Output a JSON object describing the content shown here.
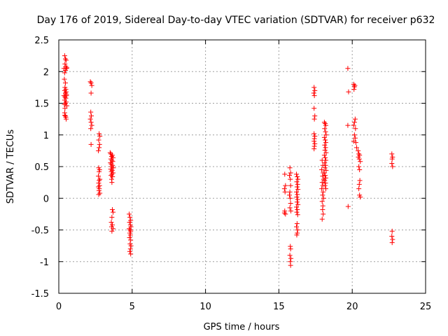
{
  "chart_data": {
    "type": "scatter",
    "title": "Day 176 of 2019, Sidereal Day-to-day VTEC variation (SDTVAR) for receiver p632",
    "xlabel": "GPS time / hours",
    "ylabel": "SDTVAR / TECUs",
    "xlim": [
      0,
      25
    ],
    "ylim": [
      -1.5,
      2.5
    ],
    "xticks": [
      0,
      5,
      10,
      15,
      20,
      25
    ],
    "xtick_labels": [
      "0",
      "5",
      "10",
      "15",
      "20",
      "25"
    ],
    "yticks": [
      -1.5,
      -1,
      -0.5,
      0,
      0.5,
      1,
      1.5,
      2,
      2.5
    ],
    "ytick_labels": [
      "-1.5",
      "-1",
      "-0.5",
      "0",
      "0.5",
      "1",
      "1.5",
      "2",
      "2.5"
    ],
    "grid": true,
    "marker": "plus",
    "color": "#ff0000",
    "series": [
      {
        "name": "SDTVAR",
        "points": [
          [
            0.4,
            2.25
          ],
          [
            0.45,
            2.2
          ],
          [
            0.5,
            2.18
          ],
          [
            0.42,
            2.12
          ],
          [
            0.48,
            2.08
          ],
          [
            0.35,
            2.05
          ],
          [
            0.52,
            2.05
          ],
          [
            0.45,
            2.02
          ],
          [
            0.4,
            1.98
          ],
          [
            0.55,
            2.06
          ],
          [
            0.38,
            1.88
          ],
          [
            0.45,
            1.82
          ],
          [
            0.42,
            1.75
          ],
          [
            0.48,
            1.72
          ],
          [
            0.4,
            1.7
          ],
          [
            0.5,
            1.68
          ],
          [
            0.45,
            1.66
          ],
          [
            0.52,
            1.64
          ],
          [
            0.35,
            1.62
          ],
          [
            0.42,
            1.6
          ],
          [
            0.48,
            1.58
          ],
          [
            0.4,
            1.55
          ],
          [
            0.5,
            1.52
          ],
          [
            0.45,
            1.5
          ],
          [
            0.38,
            1.48
          ],
          [
            0.55,
            1.46
          ],
          [
            0.42,
            1.42
          ],
          [
            0.4,
            1.35
          ],
          [
            0.45,
            1.3
          ],
          [
            0.48,
            1.28
          ],
          [
            0.5,
            1.25
          ],
          [
            0.4,
            1.31
          ],
          [
            0.52,
            1.62
          ],
          [
            2.15,
            1.84
          ],
          [
            2.2,
            1.82
          ],
          [
            2.25,
            1.78
          ],
          [
            2.2,
            1.66
          ],
          [
            2.18,
            1.36
          ],
          [
            2.22,
            1.3
          ],
          [
            2.15,
            1.25
          ],
          [
            2.2,
            1.2
          ],
          [
            2.25,
            1.15
          ],
          [
            2.18,
            1.1
          ],
          [
            2.2,
            0.85
          ],
          [
            2.75,
            1.02
          ],
          [
            2.8,
            0.98
          ],
          [
            2.72,
            0.92
          ],
          [
            2.78,
            0.85
          ],
          [
            2.75,
            0.8
          ],
          [
            2.7,
            0.75
          ],
          [
            2.72,
            0.48
          ],
          [
            2.78,
            0.45
          ],
          [
            2.75,
            0.42
          ],
          [
            2.7,
            0.35
          ],
          [
            2.8,
            0.3
          ],
          [
            2.75,
            0.28
          ],
          [
            2.72,
            0.24
          ],
          [
            2.78,
            0.2
          ],
          [
            2.7,
            0.18
          ],
          [
            2.76,
            0.15
          ],
          [
            2.74,
            0.12
          ],
          [
            2.8,
            0.08
          ],
          [
            2.72,
            0.06
          ],
          [
            3.5,
            0.72
          ],
          [
            3.55,
            0.7
          ],
          [
            3.65,
            0.68
          ],
          [
            3.6,
            0.66
          ],
          [
            3.7,
            0.64
          ],
          [
            3.55,
            0.62
          ],
          [
            3.62,
            0.6
          ],
          [
            3.68,
            0.58
          ],
          [
            3.52,
            0.56
          ],
          [
            3.58,
            0.54
          ],
          [
            3.66,
            0.52
          ],
          [
            3.6,
            0.5
          ],
          [
            3.72,
            0.48
          ],
          [
            3.54,
            0.46
          ],
          [
            3.64,
            0.44
          ],
          [
            3.58,
            0.42
          ],
          [
            3.7,
            0.4
          ],
          [
            3.62,
            0.38
          ],
          [
            3.56,
            0.36
          ],
          [
            3.66,
            0.34
          ],
          [
            3.6,
            0.3
          ],
          [
            3.62,
            0.25
          ],
          [
            3.65,
            -0.18
          ],
          [
            3.7,
            -0.22
          ],
          [
            3.62,
            -0.3
          ],
          [
            3.58,
            -0.38
          ],
          [
            3.65,
            -0.42
          ],
          [
            3.6,
            -0.45
          ],
          [
            3.7,
            -0.48
          ],
          [
            3.62,
            -0.52
          ],
          [
            4.8,
            -0.25
          ],
          [
            4.85,
            -0.3
          ],
          [
            4.9,
            -0.35
          ],
          [
            4.82,
            -0.38
          ],
          [
            4.88,
            -0.42
          ],
          [
            4.92,
            -0.45
          ],
          [
            4.8,
            -0.48
          ],
          [
            4.86,
            -0.5
          ],
          [
            4.9,
            -0.52
          ],
          [
            4.84,
            -0.55
          ],
          [
            4.88,
            -0.58
          ],
          [
            4.82,
            -0.62
          ],
          [
            4.9,
            -0.66
          ],
          [
            4.86,
            -0.72
          ],
          [
            4.92,
            -0.75
          ],
          [
            4.88,
            -0.8
          ],
          [
            4.84,
            -0.84
          ],
          [
            4.9,
            -0.88
          ],
          [
            15.4,
            0.38
          ],
          [
            15.45,
            0.2
          ],
          [
            15.38,
            0.15
          ],
          [
            15.42,
            0.1
          ],
          [
            15.4,
            -0.2
          ],
          [
            15.45,
            -0.25
          ],
          [
            15.38,
            -0.23
          ],
          [
            15.75,
            0.48
          ],
          [
            15.8,
            0.4
          ],
          [
            15.72,
            0.36
          ],
          [
            15.78,
            0.3
          ],
          [
            15.8,
            0.2
          ],
          [
            15.75,
            0.1
          ],
          [
            15.72,
            0.05
          ],
          [
            15.78,
            0.0
          ],
          [
            15.8,
            -0.08
          ],
          [
            15.75,
            -0.15
          ],
          [
            15.82,
            -0.2
          ],
          [
            15.78,
            -0.76
          ],
          [
            15.8,
            -0.8
          ],
          [
            15.75,
            -0.9
          ],
          [
            15.82,
            -0.95
          ],
          [
            15.78,
            -1.0
          ],
          [
            15.8,
            -1.06
          ],
          [
            16.2,
            0.38
          ],
          [
            16.25,
            0.34
          ],
          [
            16.3,
            0.3
          ],
          [
            16.22,
            0.26
          ],
          [
            16.28,
            0.22
          ],
          [
            16.24,
            0.18
          ],
          [
            16.3,
            0.14
          ],
          [
            16.2,
            0.1
          ],
          [
            16.26,
            0.06
          ],
          [
            16.22,
            0.02
          ],
          [
            16.28,
            -0.02
          ],
          [
            16.24,
            -0.06
          ],
          [
            16.3,
            -0.1
          ],
          [
            16.2,
            -0.14
          ],
          [
            16.26,
            -0.18
          ],
          [
            16.22,
            -0.22
          ],
          [
            16.28,
            -0.26
          ],
          [
            16.24,
            -0.4
          ],
          [
            16.2,
            -0.45
          ],
          [
            16.28,
            -0.5
          ],
          [
            16.25,
            -0.55
          ],
          [
            16.22,
            -0.58
          ],
          [
            17.4,
            1.75
          ],
          [
            17.45,
            1.7
          ],
          [
            17.38,
            1.66
          ],
          [
            17.42,
            1.62
          ],
          [
            17.4,
            1.42
          ],
          [
            17.45,
            1.3
          ],
          [
            17.42,
            1.25
          ],
          [
            17.4,
            1.02
          ],
          [
            17.45,
            0.98
          ],
          [
            17.42,
            0.94
          ],
          [
            17.4,
            0.9
          ],
          [
            17.45,
            0.86
          ],
          [
            17.42,
            0.82
          ],
          [
            17.4,
            0.78
          ],
          [
            17.95,
            0.6
          ],
          [
            18.0,
            0.52
          ],
          [
            17.92,
            0.45
          ],
          [
            18.02,
            0.4
          ],
          [
            17.98,
            0.35
          ],
          [
            18.05,
            0.3
          ],
          [
            17.95,
            0.25
          ],
          [
            18.0,
            0.2
          ],
          [
            17.92,
            0.15
          ],
          [
            18.02,
            0.1
          ],
          [
            17.98,
            0.05
          ],
          [
            18.05,
            0.0
          ],
          [
            17.95,
            -0.05
          ],
          [
            18.0,
            -0.12
          ],
          [
            17.98,
            -0.18
          ],
          [
            18.02,
            -0.25
          ],
          [
            17.95,
            -0.33
          ],
          [
            18.1,
            1.2
          ],
          [
            18.15,
            1.18
          ],
          [
            18.2,
            1.15
          ],
          [
            18.12,
            1.1
          ],
          [
            18.18,
            1.05
          ],
          [
            18.22,
            1.0
          ],
          [
            18.1,
            0.96
          ],
          [
            18.16,
            0.92
          ],
          [
            18.2,
            0.88
          ],
          [
            18.12,
            0.84
          ],
          [
            18.18,
            0.8
          ],
          [
            18.14,
            0.76
          ],
          [
            18.22,
            0.72
          ],
          [
            18.1,
            0.68
          ],
          [
            18.16,
            0.64
          ],
          [
            18.2,
            0.6
          ],
          [
            18.12,
            0.56
          ],
          [
            18.18,
            0.52
          ],
          [
            18.14,
            0.48
          ],
          [
            18.22,
            0.44
          ],
          [
            18.1,
            0.4
          ],
          [
            18.16,
            0.36
          ],
          [
            18.2,
            0.32
          ],
          [
            18.12,
            0.28
          ],
          [
            18.18,
            0.24
          ],
          [
            18.14,
            0.2
          ],
          [
            18.2,
            0.15
          ],
          [
            19.7,
            2.05
          ],
          [
            19.75,
            1.68
          ],
          [
            19.7,
            1.15
          ],
          [
            19.72,
            -0.13
          ],
          [
            20.1,
            1.8
          ],
          [
            20.15,
            1.76
          ],
          [
            20.12,
            1.72
          ],
          [
            20.18,
            1.78
          ],
          [
            20.2,
            1.25
          ],
          [
            20.15,
            1.2
          ],
          [
            20.1,
            1.15
          ],
          [
            20.22,
            1.1
          ],
          [
            20.15,
            1.0
          ],
          [
            20.2,
            0.95
          ],
          [
            20.1,
            0.9
          ],
          [
            20.25,
            0.88
          ],
          [
            20.3,
            0.8
          ],
          [
            20.4,
            0.75
          ],
          [
            20.45,
            0.7
          ],
          [
            20.5,
            0.68
          ],
          [
            20.42,
            0.65
          ],
          [
            20.48,
            0.62
          ],
          [
            20.55,
            0.58
          ],
          [
            20.45,
            0.5
          ],
          [
            20.5,
            0.45
          ],
          [
            20.52,
            0.28
          ],
          [
            20.48,
            0.22
          ],
          [
            20.45,
            0.15
          ],
          [
            20.5,
            0.05
          ],
          [
            20.55,
            0.02
          ],
          [
            22.7,
            0.7
          ],
          [
            22.75,
            0.65
          ],
          [
            22.72,
            0.62
          ],
          [
            22.7,
            0.55
          ],
          [
            22.75,
            0.5
          ],
          [
            22.72,
            -0.52
          ],
          [
            22.7,
            -0.6
          ],
          [
            22.75,
            -0.65
          ],
          [
            22.72,
            -0.7
          ]
        ]
      }
    ]
  }
}
